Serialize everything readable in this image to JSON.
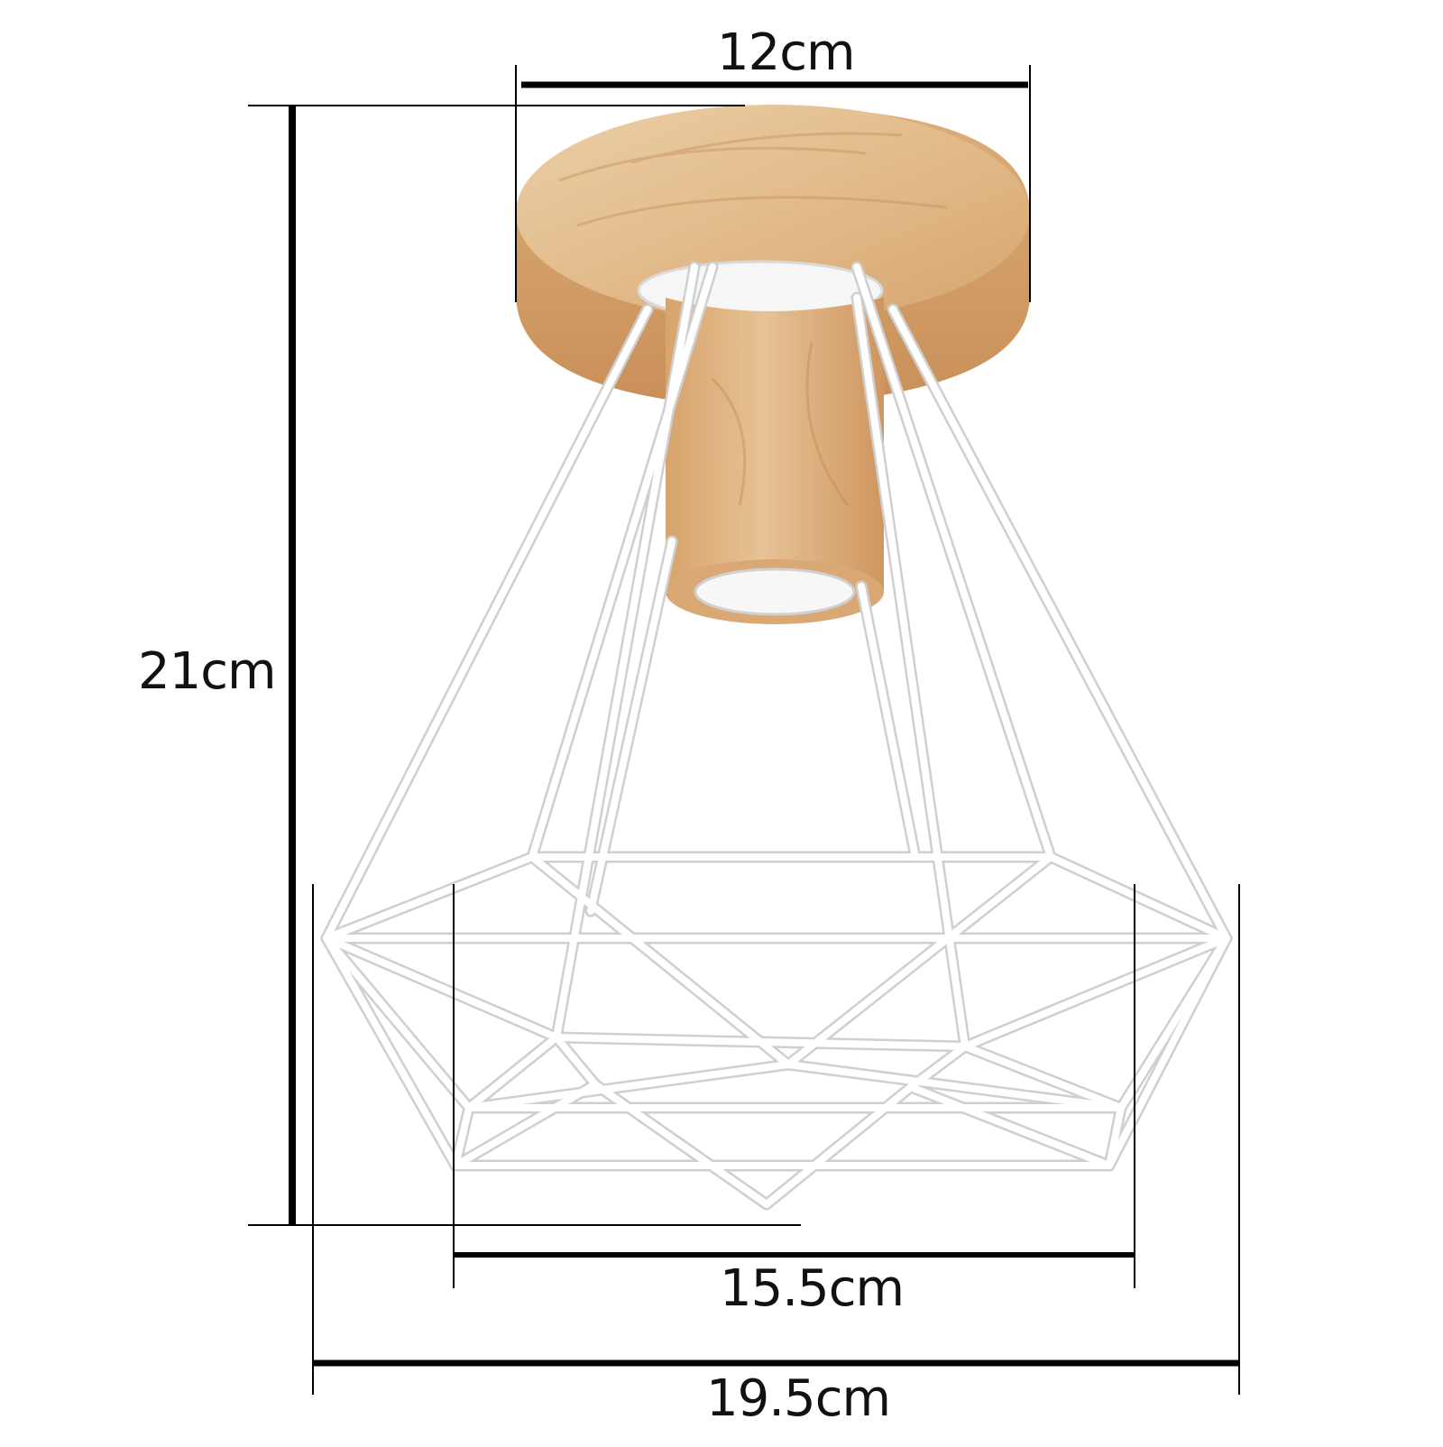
{
  "dimensions": {
    "base_diameter": "12cm",
    "height": "21cm",
    "cage_inner_width": "15.5cm",
    "cage_outer_width": "19.5cm"
  },
  "colors": {
    "background": "#ffffff",
    "wood_light": "#e8c9a0",
    "wood_mid": "#d9ac78",
    "wood_dark": "#c8935c",
    "wire": "#ffffff",
    "wire_outline": "#cfcfcf",
    "dimension_line": "#000000",
    "socket": "#f4f4f4"
  }
}
